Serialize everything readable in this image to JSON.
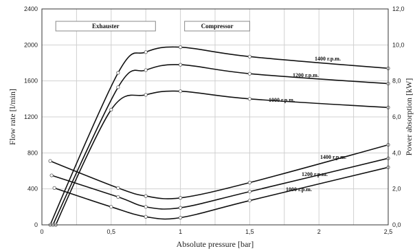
{
  "chart_data": {
    "type": "line",
    "xlabel": "Absolute pressure [bar]",
    "ylabel": "Flow rate [l/min]",
    "y2label": "Power absorption [kW]",
    "xlim": [
      0,
      2.5
    ],
    "ylim": [
      0,
      2400
    ],
    "y2lim": [
      0,
      12
    ],
    "x_ticks": [
      "0",
      "0,5",
      "1",
      "1,5",
      "2",
      "2,5"
    ],
    "y_ticks": [
      "0",
      "400",
      "800",
      "1200",
      "1600",
      "2000",
      "2400"
    ],
    "y2_ticks": [
      "0,0",
      "2,0",
      "4,0",
      "6,0",
      "8,0",
      "10,0",
      "12,0"
    ],
    "grid": true,
    "regions": [
      {
        "label": "Exhauster",
        "x_range": [
          0.1,
          0.82
        ]
      },
      {
        "label": "Compressor",
        "x_range": [
          1.03,
          1.5
        ]
      }
    ],
    "flow_series": [
      {
        "name": "1400 r.p.m.",
        "x": [
          0.06,
          0.55,
          0.75,
          1.0,
          1.5,
          2.5
        ],
        "y": [
          0,
          1690,
          1920,
          1975,
          1870,
          1740
        ]
      },
      {
        "name": "1200 r.p.m.",
        "x": [
          0.08,
          0.55,
          0.75,
          1.0,
          1.5,
          2.5
        ],
        "y": [
          0,
          1530,
          1720,
          1780,
          1680,
          1570
        ]
      },
      {
        "name": "1000 r.p.m.",
        "x": [
          0.1,
          0.5,
          0.75,
          1.0,
          1.5,
          2.5
        ],
        "y": [
          0,
          1280,
          1445,
          1485,
          1400,
          1305
        ]
      }
    ],
    "power_series": [
      {
        "name": "1400 r.p.m.",
        "x": [
          0.06,
          0.55,
          0.75,
          1.0,
          1.5,
          2.5
        ],
        "y": [
          3.55,
          2.05,
          1.6,
          1.5,
          2.35,
          4.45
        ]
      },
      {
        "name": "1200 r.p.m.",
        "x": [
          0.07,
          0.55,
          0.75,
          1.0,
          1.5,
          2.5
        ],
        "y": [
          2.75,
          1.55,
          1.0,
          0.95,
          1.85,
          3.7
        ]
      },
      {
        "name": "1000 r.p.m.",
        "x": [
          0.09,
          0.5,
          0.75,
          1.0,
          1.5,
          2.5
        ],
        "y": [
          2.05,
          1.0,
          0.45,
          0.4,
          1.35,
          3.2
        ]
      }
    ]
  }
}
